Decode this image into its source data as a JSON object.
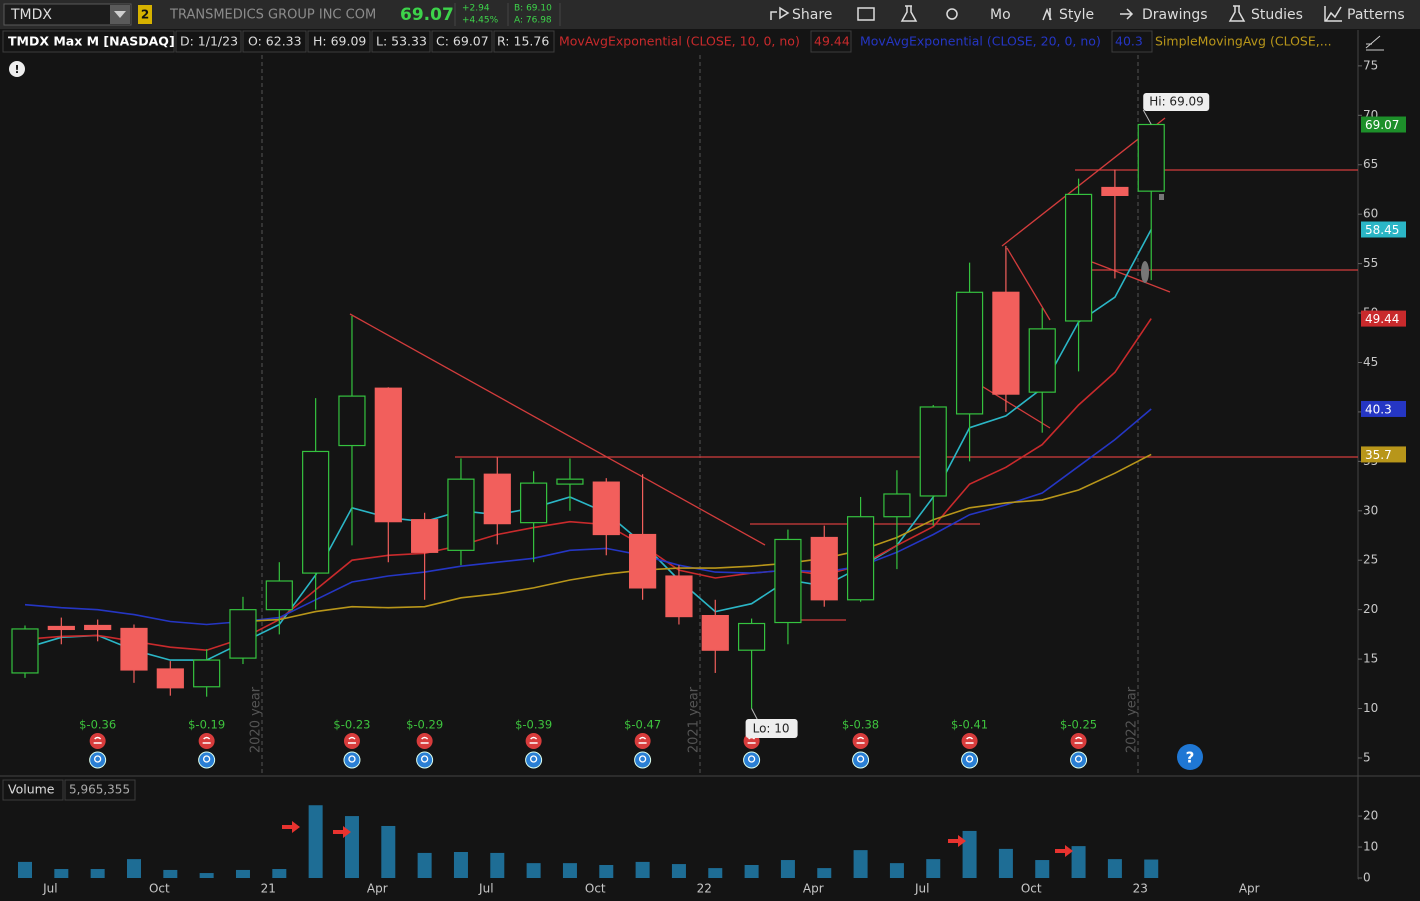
{
  "toolbar": {
    "symbol": "TMDX",
    "link": "2",
    "company": "TRANSMEDICS GROUP INC COM",
    "last": "69.07",
    "change": "+2.94",
    "change_pct": "+4.45%",
    "bid": "B: 69.10",
    "ask": "A: 76.98",
    "buttons": [
      "Share",
      "Mo",
      "Style",
      "Drawings",
      "Studies",
      "Patterns"
    ]
  },
  "header": {
    "symbol": "TMDX Max M [NASDAQ]",
    "date": "D: 1/1/23",
    "open": "O: 62.33",
    "high": "H: 69.09",
    "low": "L: 53.33",
    "close": "C: 69.07",
    "range": "R: 15.76"
  },
  "chart_data": {
    "type": "candlestick",
    "categories": [
      null,
      "Jul",
      null,
      null,
      "Oct",
      null,
      null,
      "21",
      null,
      null,
      "Apr",
      null,
      null,
      "Jul",
      null,
      null,
      "Oct",
      null,
      null,
      "22",
      null,
      null,
      "Apr",
      null,
      null,
      "Jul",
      null,
      null,
      "Oct",
      null,
      null,
      "23",
      null,
      null,
      "Apr"
    ],
    "open": [
      13.6,
      18.3,
      18.4,
      18.1,
      14.0,
      12.2,
      15.1,
      20.0,
      23.7,
      36.6,
      42.4,
      29.1,
      26.0,
      33.7,
      28.8,
      32.7,
      32.9,
      27.6,
      23.4,
      19.4,
      15.9,
      18.7,
      27.3,
      21.0,
      29.4,
      31.5,
      39.8,
      52.1,
      42.0,
      49.2,
      62.7,
      62.33,
      null,
      null,
      null
    ],
    "high": [
      18.4,
      19.2,
      19.0,
      18.5,
      14.8,
      16.0,
      21.3,
      24.8,
      41.4,
      49.7,
      42.5,
      29.8,
      35.3,
      35.4,
      34.0,
      35.3,
      33.3,
      33.7,
      24.5,
      21.0,
      19.1,
      28.1,
      28.5,
      31.4,
      34.1,
      40.7,
      55.1,
      56.8,
      50.5,
      63.6,
      64.5,
      69.09,
      null,
      null,
      null
    ],
    "low": [
      13.1,
      16.5,
      16.8,
      12.6,
      11.3,
      11.2,
      14.5,
      17.5,
      20.0,
      26.5,
      24.8,
      21.0,
      24.5,
      26.6,
      24.8,
      30.0,
      25.5,
      21.0,
      18.5,
      13.6,
      10.0,
      16.5,
      20.3,
      20.8,
      24.1,
      28.5,
      35.0,
      40.0,
      37.9,
      44.1,
      53.5,
      53.33,
      null,
      null,
      null
    ],
    "close": [
      18.05,
      18.0,
      18.0,
      13.9,
      12.1,
      14.9,
      20.0,
      22.9,
      36.0,
      41.6,
      28.9,
      25.8,
      33.2,
      28.7,
      32.8,
      33.2,
      27.6,
      22.2,
      19.3,
      15.9,
      18.6,
      27.1,
      21.0,
      29.4,
      31.7,
      40.5,
      52.1,
      41.8,
      48.4,
      62.0,
      61.9,
      69.07,
      null,
      null,
      null
    ],
    "up_color": "#35c23f",
    "down_color": "#f25f5c",
    "series": [
      {
        "color": "#2bb6c6",
        "values": [
          16.1,
          17.2,
          17.4,
          15.9,
          14.9,
          14.9,
          16.7,
          18.5,
          23.5,
          30.3,
          29.3,
          28.9,
          30.0,
          29.6,
          30.3,
          31.4,
          29.8,
          26.7,
          23.0,
          19.8,
          20.6,
          23.0,
          22.4,
          24.3,
          26.5,
          31.4,
          38.4,
          39.6,
          42.4,
          49.1,
          51.6,
          58.45,
          null,
          null,
          null
        ]
      },
      {
        "name": "MovAvgExponential (CLOSE, 10, 0, no)",
        "color": "#c92a2c",
        "values": [
          17.0,
          17.3,
          17.4,
          16.8,
          16.2,
          15.9,
          17.1,
          19.0,
          22.0,
          25.0,
          25.5,
          25.7,
          26.5,
          27.6,
          28.3,
          28.9,
          28.6,
          26.5,
          24.0,
          23.2,
          23.7,
          24.0,
          23.5,
          24.5,
          26.5,
          28.4,
          32.7,
          34.4,
          36.7,
          40.7,
          44.0,
          49.44,
          null,
          null,
          null
        ]
      },
      {
        "name": "MovAvgExponential (CLOSE, 20, 0, no)",
        "color": "#2536c4",
        "values": [
          20.5,
          20.2,
          20.0,
          19.5,
          18.8,
          18.5,
          18.8,
          19.2,
          21.0,
          22.8,
          23.4,
          23.8,
          24.4,
          24.8,
          25.2,
          26.0,
          26.2,
          25.5,
          24.5,
          23.8,
          23.7,
          24.0,
          23.8,
          24.4,
          25.8,
          27.6,
          29.6,
          30.6,
          31.8,
          34.5,
          37.2,
          40.3,
          null,
          null,
          null
        ]
      },
      {
        "name": "SimpleMovingAvg (CLOSE,...",
        "color": "#b8961a",
        "values": [
          null,
          null,
          null,
          null,
          null,
          null,
          18.8,
          19.0,
          19.8,
          20.3,
          20.2,
          20.3,
          21.2,
          21.6,
          22.2,
          23.0,
          23.6,
          24.0,
          24.2,
          24.2,
          24.4,
          24.7,
          25.2,
          26.0,
          27.3,
          29.1,
          30.3,
          30.8,
          31.1,
          32.1,
          33.8,
          35.7,
          null,
          null,
          null
        ]
      }
    ],
    "ylim": [
      3.48,
      76.1
    ],
    "yticks": [
      5,
      10,
      15,
      20,
      25,
      30,
      35,
      40,
      45,
      50,
      55,
      60,
      65,
      70,
      75
    ],
    "eps": [
      null,
      null,
      "$-0.36",
      null,
      null,
      "$-0.19",
      null,
      null,
      null,
      "$-0.23",
      null,
      "$-0.29",
      null,
      null,
      "$-0.39",
      null,
      null,
      "$-0.47",
      null,
      null,
      "$-",
      null,
      null,
      "$-0.38",
      null,
      null,
      "$-0.41",
      null,
      null,
      "$-0.25",
      null,
      null,
      null,
      null,
      null
    ],
    "annotations": {
      "high": "Hi: 69.09",
      "low": "Lo: 10"
    },
    "year_labels": [
      "2020 year",
      "2021 year",
      "2022 year"
    ],
    "volume": {
      "label": "Volume",
      "value_label": "5,965,355",
      "color": "#1e6d95",
      "ylim": [
        0,
        23.9
      ],
      "yticks": [
        0,
        10,
        20
      ],
      "values": [
        5.2,
        2.9,
        2.9,
        6.1,
        2.6,
        1.6,
        2.6,
        2.9,
        23.5,
        20.0,
        16.8,
        8.1,
        8.4,
        8.1,
        4.8,
        4.8,
        4.2,
        5.2,
        4.5,
        3.2,
        4.2,
        5.8,
        3.2,
        9.0,
        4.8,
        6.1,
        15.2,
        9.4,
        5.8,
        10.3,
        6.1,
        5.965355,
        null,
        null,
        null
      ]
    }
  }
}
